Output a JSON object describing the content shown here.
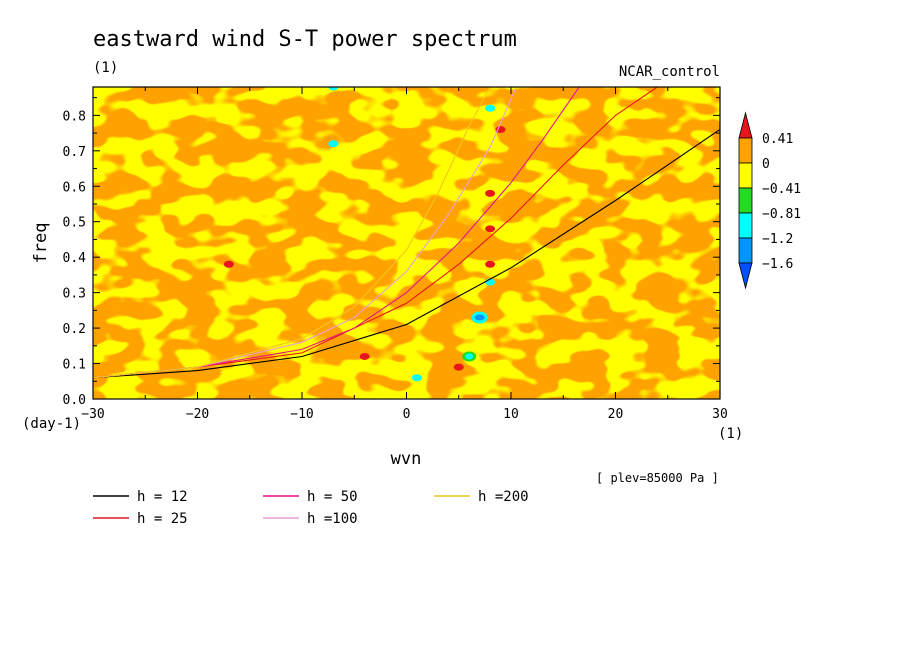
{
  "chart_data": {
    "type": "heatmap",
    "title": "eastward wind S-T power spectrum",
    "subtitle_left": "(1)",
    "subtitle_right": "NCAR_control",
    "xlabel": "wvn",
    "ylabel": "freq",
    "x_unit": "(1)",
    "y_unit": "(day-1)",
    "xlim": [
      -30,
      30
    ],
    "ylim": [
      0,
      0.88
    ],
    "xticks": [
      -30,
      -20,
      -10,
      0,
      10,
      20,
      30
    ],
    "xtick_labels": [
      "−30",
      "−20",
      "−10",
      "0",
      "10",
      "20",
      "30"
    ],
    "yticks": [
      0.0,
      0.1,
      0.2,
      0.3,
      0.4,
      0.5,
      0.6,
      0.7,
      0.8
    ],
    "ytick_labels": [
      "0.0",
      "0.1",
      "0.2",
      "0.3",
      "0.4",
      "0.5",
      "0.6",
      "0.7",
      "0.8"
    ],
    "annotation": "[ plev=85000 Pa ]",
    "colorbar": {
      "labels": [
        "0.41",
        "0",
        "−0.41",
        "−0.81",
        "−1.2",
        "−1.6"
      ],
      "colors": [
        "#e8141e",
        "#ffa200",
        "#ffff00",
        "#22dd22",
        "#00ffff",
        "#0096ff",
        "#0050ff"
      ]
    },
    "background_colors": {
      "positive": "#ffa200",
      "near_zero": "#ffff00"
    },
    "dispersion_curves": [
      {
        "name": "h = 12",
        "color": "#000000",
        "x": [
          -30,
          -20,
          -10,
          0,
          10,
          20,
          30
        ],
        "y": [
          0.06,
          0.08,
          0.12,
          0.21,
          0.37,
          0.56,
          0.76
        ]
      },
      {
        "name": "h = 25",
        "color": "#e8141e",
        "x": [
          -30,
          -20,
          -10,
          0,
          5,
          10,
          15,
          20,
          25
        ],
        "y": [
          0.06,
          0.09,
          0.13,
          0.27,
          0.38,
          0.51,
          0.66,
          0.8,
          0.9
        ]
      },
      {
        "name": "h = 50",
        "color": "#e6148c",
        "x": [
          -30,
          -20,
          -10,
          -5,
          0,
          5,
          10,
          13,
          17
        ],
        "y": [
          0.06,
          0.09,
          0.14,
          0.2,
          0.3,
          0.44,
          0.61,
          0.73,
          0.9
        ]
      },
      {
        "name": "h =100",
        "color": "#e6a0d2",
        "x": [
          -30,
          -20,
          -10,
          -5,
          0,
          4,
          8,
          10.5
        ],
        "y": [
          0.06,
          0.09,
          0.16,
          0.23,
          0.36,
          0.52,
          0.71,
          0.88
        ]
      },
      {
        "name": "h =200",
        "color": "#f0c81e",
        "x": [
          -30,
          -20,
          -10,
          -5,
          0,
          3,
          6,
          8
        ],
        "y": [
          0.06,
          0.09,
          0.17,
          0.26,
          0.42,
          0.58,
          0.77,
          0.88
        ]
      }
    ],
    "features": [
      {
        "x": 7,
        "y": 0.23,
        "level": "−1.6"
      },
      {
        "x": 6,
        "y": 0.12,
        "level": "−1.2"
      },
      {
        "x": 8,
        "y": 0.33,
        "level": "−0.81"
      },
      {
        "x": 1,
        "y": 0.06,
        "level": "−0.81"
      },
      {
        "x": -7,
        "y": 0.88,
        "level": "−0.81"
      },
      {
        "x": -7,
        "y": 0.72,
        "level": "−0.81"
      },
      {
        "x": 9,
        "y": 0.76,
        "level": "0.41"
      },
      {
        "x": 8,
        "y": 0.58,
        "level": "0.41"
      },
      {
        "x": -17,
        "y": 0.38,
        "level": "0.41"
      },
      {
        "x": -4,
        "y": 0.12,
        "level": "0.41"
      },
      {
        "x": 5,
        "y": 0.09,
        "level": "0.41"
      },
      {
        "x": 8,
        "y": 0.38,
        "level": "0.41"
      },
      {
        "x": 8,
        "y": 0.48,
        "level": "0.41"
      },
      {
        "x": 8,
        "y": 0.82,
        "level": "−0.81"
      }
    ]
  }
}
